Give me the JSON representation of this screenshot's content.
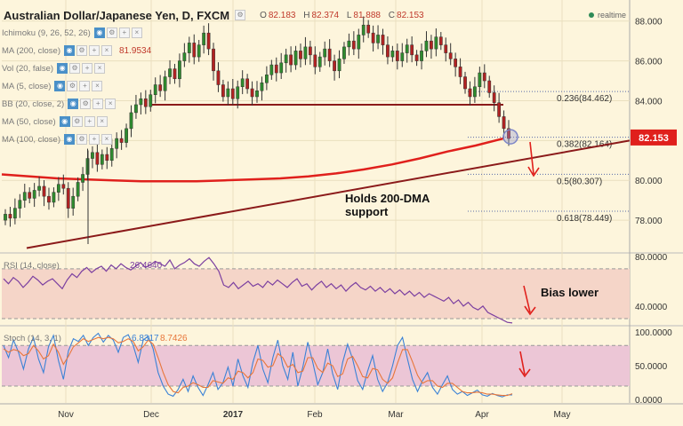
{
  "header": {
    "symbol": "Australian Dollar/Japanese Yen, D, FXCM",
    "open_label": "O",
    "open": "82.183",
    "high_label": "H",
    "high": "82.374",
    "low_label": "L",
    "low": "81.888",
    "close_label": "C",
    "close": "82.153",
    "realtime": "realtime"
  },
  "indicators": [
    {
      "label": "Ichimoku (9, 26, 52, 26)",
      "value": ""
    },
    {
      "label": "MA (200, close)",
      "value": "81.9534"
    },
    {
      "label": "Vol (20, false)",
      "value": ""
    },
    {
      "label": "MA (5, close)",
      "value": ""
    },
    {
      "label": "BB (20, close, 2)",
      "value": ""
    },
    {
      "label": "MA (50, close)",
      "value": ""
    },
    {
      "label": "MA (100, close)",
      "value": ""
    }
  ],
  "colors": {
    "ma200": "#e0201c",
    "trend": "#8b1a1a",
    "candle_up": "#2e8b2e",
    "candle_down": "#b22222",
    "rsi_line": "#7b3fa0",
    "rsi_band": "#f5d5c8",
    "stoch_k": "#3b82d6",
    "stoch_d": "#e8763a",
    "stoch_band": "#ecc6d6",
    "price_tag": "#e0201c"
  },
  "chart_data": [
    {
      "type": "candlestick",
      "title": "Australian Dollar/Japanese Yen, D, FXCM",
      "x_ticks": [
        "Nov",
        "Dec",
        "2017",
        "Feb",
        "Mar",
        "Apr",
        "May"
      ],
      "y_ticks": [
        "88.000",
        "86.000",
        "84.000",
        "82.000",
        "80.000",
        "78.000"
      ],
      "ylim": [
        76.4,
        88.7
      ],
      "last_price": "82.153",
      "ma200_label": "81.9534",
      "fib_levels": [
        {
          "label": "0.236(84.462)",
          "value": 84.462
        },
        {
          "label": "0.382(82.164)",
          "value": 82.164
        },
        {
          "label": "0.5(80.307)",
          "value": 80.307
        },
        {
          "label": "0.618(78.449)",
          "value": 78.449
        }
      ],
      "horizontal_line": 83.8,
      "annotations": [
        "Holds 200-DMA",
        "support"
      ],
      "close_series": [
        78.3,
        78.1,
        78.6,
        79.0,
        79.4,
        79.1,
        79.5,
        79.7,
        79.2,
        78.9,
        79.4,
        79.8,
        79.6,
        78.6,
        79.2,
        79.9,
        80.3,
        81.1,
        81.4,
        80.8,
        81.3,
        81.0,
        81.6,
        82.1,
        81.9,
        82.6,
        83.4,
        83.8,
        84.1,
        83.7,
        84.3,
        84.8,
        84.5,
        85.2,
        85.6,
        85.1,
        86.0,
        86.4,
        86.9,
        86.2,
        86.8,
        87.4,
        86.6,
        85.5,
        84.8,
        84.2,
        84.6,
        84.1,
        84.7,
        85.1,
        84.6,
        84.2,
        84.5,
        84.9,
        85.3,
        85.8,
        85.4,
        85.9,
        86.3,
        85.8,
        86.5,
        86.1,
        86.7,
        86.3,
        85.7,
        86.2,
        86.6,
        86.0,
        85.5,
        86.1,
        86.7,
        87.0,
        86.6,
        87.3,
        87.8,
        87.4,
        86.9,
        87.3,
        86.8,
        86.2,
        86.5,
        86.0,
        86.4,
        86.8,
        86.3,
        86.0,
        86.5,
        87.0,
        86.6,
        87.2,
        86.8,
        86.4,
        86.1,
        85.7,
        85.2,
        84.6,
        84.2,
        84.7,
        85.4,
        85.0,
        84.4,
        83.9,
        83.2,
        82.6,
        82.1
      ],
      "ma200_series": [
        80.3,
        80.2,
        80.1,
        80.05,
        80.0,
        79.95,
        79.95,
        79.95,
        80.0,
        80.05,
        80.1,
        80.2,
        80.35,
        80.55,
        80.8,
        81.1,
        81.45,
        81.75,
        82.1
      ],
      "trendline": {
        "from": 76.6,
        "to": 82.0
      }
    },
    {
      "type": "line",
      "title": "RSI (14, close)",
      "value_label": "26.4640",
      "y_ticks": [
        "80.0000",
        "40.0000"
      ],
      "ylim": [
        25,
        82
      ],
      "bands": [
        70,
        30
      ],
      "values": [
        62,
        58,
        63,
        60,
        55,
        59,
        64,
        61,
        57,
        60,
        62,
        58,
        54,
        61,
        66,
        63,
        68,
        71,
        67,
        70,
        72,
        68,
        73,
        70,
        74,
        71,
        69,
        72,
        75,
        71,
        73,
        76,
        74,
        72,
        77,
        70,
        73,
        75,
        78,
        74,
        72,
        76,
        79,
        74,
        68,
        57,
        55,
        59,
        54,
        57,
        60,
        56,
        58,
        55,
        60,
        57,
        61,
        58,
        55,
        59,
        62,
        56,
        58,
        53,
        57,
        60,
        55,
        58,
        54,
        57,
        52,
        56,
        59,
        55,
        53,
        56,
        52,
        55,
        51,
        54,
        50,
        53,
        49,
        52,
        48,
        51,
        47,
        50,
        48,
        46,
        44,
        47,
        42,
        45,
        40,
        43,
        39,
        37,
        40,
        35,
        33,
        31,
        29,
        27,
        26.5
      ]
    },
    {
      "type": "line",
      "title": "Stoch (14, 3, 1)",
      "value_labels": [
        "6.8317",
        "8.7426"
      ],
      "y_ticks": [
        "100.0000",
        "50.0000",
        "0.0000"
      ],
      "ylim": [
        -5,
        108
      ],
      "bands": [
        80,
        20
      ],
      "series": [
        {
          "values": [
            80,
            62,
            88,
            70,
            45,
            75,
            92,
            60,
            40,
            78,
            95,
            58,
            30,
            72,
            90,
            86,
            95,
            80,
            92,
            98,
            85,
            95,
            88,
            70,
            92,
            96,
            80,
            55,
            88,
            94,
            75,
            40,
            20,
            8,
            5,
            15,
            30,
            12,
            35,
            18,
            6,
            22,
            40,
            15,
            25,
            48,
            20,
            60,
            35,
            18,
            55,
            80,
            45,
            25,
            62,
            88,
            50,
            30,
            70,
            20,
            48,
            85,
            55,
            22,
            40,
            75,
            38,
            15,
            55,
            82,
            60,
            28,
            15,
            42,
            65,
            30,
            12,
            25,
            50,
            80,
            92,
            60,
            30,
            12,
            28,
            40,
            18,
            8,
            22,
            35,
            15,
            8,
            12,
            6,
            10,
            14,
            7,
            5,
            9,
            6,
            4,
            7,
            6.8
          ]
        },
        {
          "values": [
            75,
            70,
            74,
            72,
            65,
            68,
            80,
            72,
            60,
            65,
            82,
            70,
            52,
            64,
            78,
            84,
            90,
            86,
            89,
            92,
            90,
            92,
            90,
            84,
            86,
            90,
            86,
            72,
            78,
            88,
            82,
            62,
            40,
            22,
            12,
            10,
            18,
            20,
            25,
            22,
            18,
            18,
            28,
            26,
            24,
            32,
            30,
            42,
            40,
            32,
            40,
            60,
            58,
            48,
            50,
            68,
            62,
            48,
            52,
            40,
            42,
            62,
            62,
            46,
            40,
            54,
            50,
            34,
            38,
            60,
            64,
            50,
            34,
            32,
            46,
            44,
            30,
            24,
            32,
            54,
            74,
            74,
            56,
            36,
            24,
            28,
            28,
            20,
            18,
            24,
            24,
            18,
            12,
            10,
            10,
            11,
            10,
            8,
            8,
            7,
            6,
            6,
            8.7
          ]
        }
      ]
    }
  ]
}
